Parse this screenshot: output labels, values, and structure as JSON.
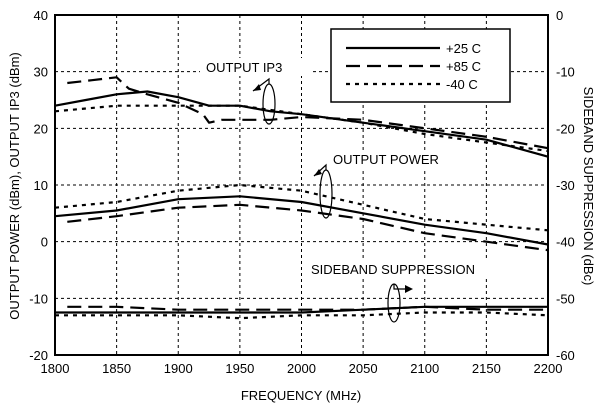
{
  "chart_data": {
    "type": "line",
    "xlabel": "FREQUENCY (MHz)",
    "ylabel_left": "OUTPUT POWER  (dBm), OUTPUT IP3 (dBm)",
    "ylabel_right": "SIDEBAND SUPPRESSION (dBc)",
    "xlim": [
      1800,
      2200
    ],
    "ylim_left": [
      -20,
      40
    ],
    "ylim_right": [
      -60,
      0
    ],
    "x_ticks": [
      "1800",
      "1850",
      "1900",
      "1950",
      "2000",
      "2050",
      "2100",
      "2150",
      "2200"
    ],
    "y_ticks_left": [
      "40",
      "30",
      "20",
      "10",
      "0",
      "-10",
      "-20"
    ],
    "y_ticks_right": [
      "0",
      "-10",
      "-20",
      "-30",
      "-40",
      "-50",
      "-60"
    ],
    "grid": true,
    "legend_position": "top-right",
    "legend": [
      {
        "label": "+25 C",
        "style": "solid"
      },
      {
        "label": "+85 C",
        "style": "dashed"
      },
      {
        "label": "-40 C",
        "style": "dotted"
      }
    ],
    "annotations": [
      "OUTPUT IP3",
      "OUTPUT POWER",
      "SIDEBAND SUPPRESSION"
    ],
    "groups": [
      {
        "name": "OUTPUT IP3",
        "axis": "left",
        "series": [
          {
            "temp": "+25 C",
            "x": [
              1800,
              1825,
              1850,
              1875,
              1900,
              1925,
              1950,
              1975,
              2000,
              2050,
              2100,
              2150,
              2200
            ],
            "y": [
              24,
              25,
              26,
              26.5,
              25.5,
              24,
              24,
              23,
              22.5,
              21,
              19.5,
              18,
              15
            ]
          },
          {
            "temp": "+85 C",
            "x": [
              1810,
              1830,
              1850,
              1860,
              1875,
              1900,
              1920,
              1925,
              1935,
              1950,
              1975,
              2000,
              2050,
              2100,
              2150,
              2200
            ],
            "y": [
              28,
              28.5,
              29,
              27,
              26,
              24.5,
              22.5,
              21,
              21.5,
              21.5,
              21.5,
              22,
              21.5,
              20,
              18.5,
              16.5
            ]
          },
          {
            "temp": "-40 C",
            "x": [
              1800,
              1850,
              1900,
              1950,
              2000,
              2050,
              2100,
              2150,
              2200
            ],
            "y": [
              23,
              24,
              24,
              24,
              22.5,
              21,
              19,
              17.5,
              16
            ]
          }
        ]
      },
      {
        "name": "OUTPUT POWER",
        "axis": "left",
        "series": [
          {
            "temp": "+25 C",
            "x": [
              1800,
              1850,
              1900,
              1950,
              2000,
              2050,
              2100,
              2150,
              2200
            ],
            "y": [
              4.5,
              5.5,
              7.5,
              8,
              7,
              5,
              3,
              1.5,
              -0.5
            ]
          },
          {
            "temp": "+85 C",
            "x": [
              1810,
              1850,
              1900,
              1950,
              2000,
              2050,
              2100,
              2150,
              2200
            ],
            "y": [
              3.5,
              4.5,
              6,
              6.5,
              5.5,
              4,
              1.5,
              0,
              -1.5
            ]
          },
          {
            "temp": "-40 C",
            "x": [
              1800,
              1850,
              1900,
              1950,
              2000,
              2050,
              2100,
              2150,
              2200
            ],
            "y": [
              6,
              7,
              9,
              10,
              9,
              6.5,
              4,
              3,
              2
            ]
          }
        ]
      },
      {
        "name": "SIDEBAND SUPPRESSION",
        "axis": "right",
        "series": [
          {
            "temp": "+25 C",
            "x": [
              1800,
              1850,
              1900,
              1950,
              2000,
              2050,
              2100,
              2150,
              2200
            ],
            "y": [
              -52.5,
              -52.5,
              -52.5,
              -52.5,
              -52.5,
              -52,
              -51.5,
              -51.5,
              -51.5
            ]
          },
          {
            "temp": "+85 C",
            "x": [
              1810,
              1850,
              1900,
              1950,
              2000,
              2050,
              2100,
              2150,
              2200
            ],
            "y": [
              -51.5,
              -51.5,
              -52,
              -52,
              -52,
              -52,
              -51.5,
              -52,
              -52
            ]
          },
          {
            "temp": "-40 C",
            "x": [
              1800,
              1850,
              1900,
              1950,
              2000,
              2050,
              2100,
              2150,
              2200
            ],
            "y": [
              -53,
              -53,
              -53,
              -53.5,
              -53,
              -53,
              -52.5,
              -52.5,
              -53
            ]
          }
        ]
      }
    ]
  }
}
